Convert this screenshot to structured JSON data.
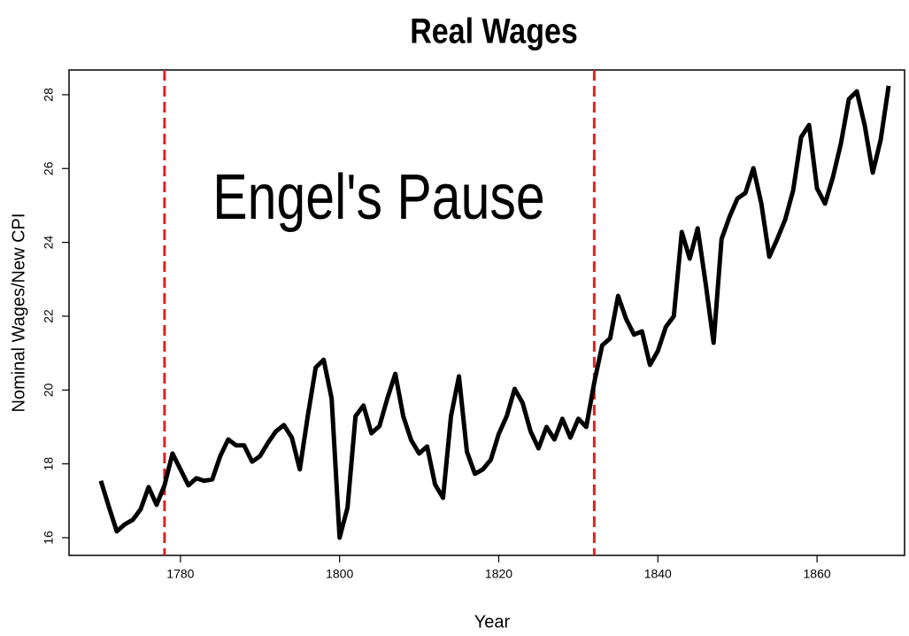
{
  "chart_data": {
    "type": "line",
    "title": "Real Wages",
    "xlabel": "Year",
    "ylabel": "Nominal Wages/New CPI",
    "annotation": "Engel's Pause",
    "x": [
      1770,
      1771,
      1772,
      1773,
      1774,
      1775,
      1776,
      1777,
      1778,
      1779,
      1780,
      1781,
      1782,
      1783,
      1784,
      1785,
      1786,
      1787,
      1788,
      1789,
      1790,
      1791,
      1792,
      1793,
      1794,
      1795,
      1796,
      1797,
      1798,
      1799,
      1800,
      1801,
      1802,
      1803,
      1804,
      1805,
      1806,
      1807,
      1808,
      1809,
      1810,
      1811,
      1812,
      1813,
      1814,
      1815,
      1816,
      1817,
      1818,
      1819,
      1820,
      1821,
      1822,
      1823,
      1824,
      1825,
      1826,
      1827,
      1828,
      1829,
      1830,
      1831,
      1832,
      1833,
      1834,
      1835,
      1836,
      1837,
      1838,
      1839,
      1840,
      1841,
      1842,
      1843,
      1844,
      1845,
      1846,
      1847,
      1848,
      1849,
      1850,
      1851,
      1852,
      1853,
      1854,
      1855,
      1856,
      1857,
      1858,
      1859,
      1860,
      1861,
      1862,
      1863,
      1864,
      1865,
      1866,
      1867,
      1868,
      1869
    ],
    "series": [
      {
        "name": "Real Wages",
        "color": "#000000",
        "values": [
          17.54,
          16.84,
          16.17,
          16.36,
          16.48,
          16.77,
          17.37,
          16.89,
          17.42,
          18.28,
          17.85,
          17.42,
          17.61,
          17.54,
          17.58,
          18.21,
          18.66,
          18.5,
          18.5,
          18.06,
          18.21,
          18.57,
          18.88,
          19.05,
          18.71,
          17.85,
          19.29,
          20.61,
          20.82,
          19.77,
          16.0,
          16.82,
          19.29,
          19.58,
          18.83,
          19.02,
          19.77,
          20.44,
          19.29,
          18.64,
          18.28,
          18.47,
          17.44,
          17.08,
          19.29,
          20.37,
          18.33,
          17.73,
          17.85,
          18.11,
          18.81,
          19.29,
          20.03,
          19.65,
          18.88,
          18.42,
          19.0,
          18.66,
          19.22,
          18.71,
          19.22,
          19.0,
          20.2,
          21.21,
          21.4,
          22.55,
          21.93,
          21.5,
          21.59,
          20.68,
          21.06,
          21.71,
          22.0,
          24.28,
          23.56,
          24.38,
          22.89,
          21.28,
          24.09,
          24.69,
          25.19,
          25.34,
          26.01,
          25.05,
          23.61,
          24.09,
          24.62,
          25.41,
          26.85,
          27.18,
          25.46,
          25.05,
          25.77,
          26.68,
          27.88,
          28.09,
          27.16,
          25.89,
          26.78,
          28.24
        ]
      }
    ],
    "vlines": [
      1778,
      1832
    ],
    "vline_color": "#dd2222",
    "xlim": [
      1766,
      1871
    ],
    "xticks": [
      1780,
      1800,
      1820,
      1840,
      1860
    ],
    "ylim": [
      15.52,
      28.67
    ],
    "yticks": [
      16,
      18,
      20,
      22,
      24,
      26,
      28
    ],
    "grid": false
  }
}
